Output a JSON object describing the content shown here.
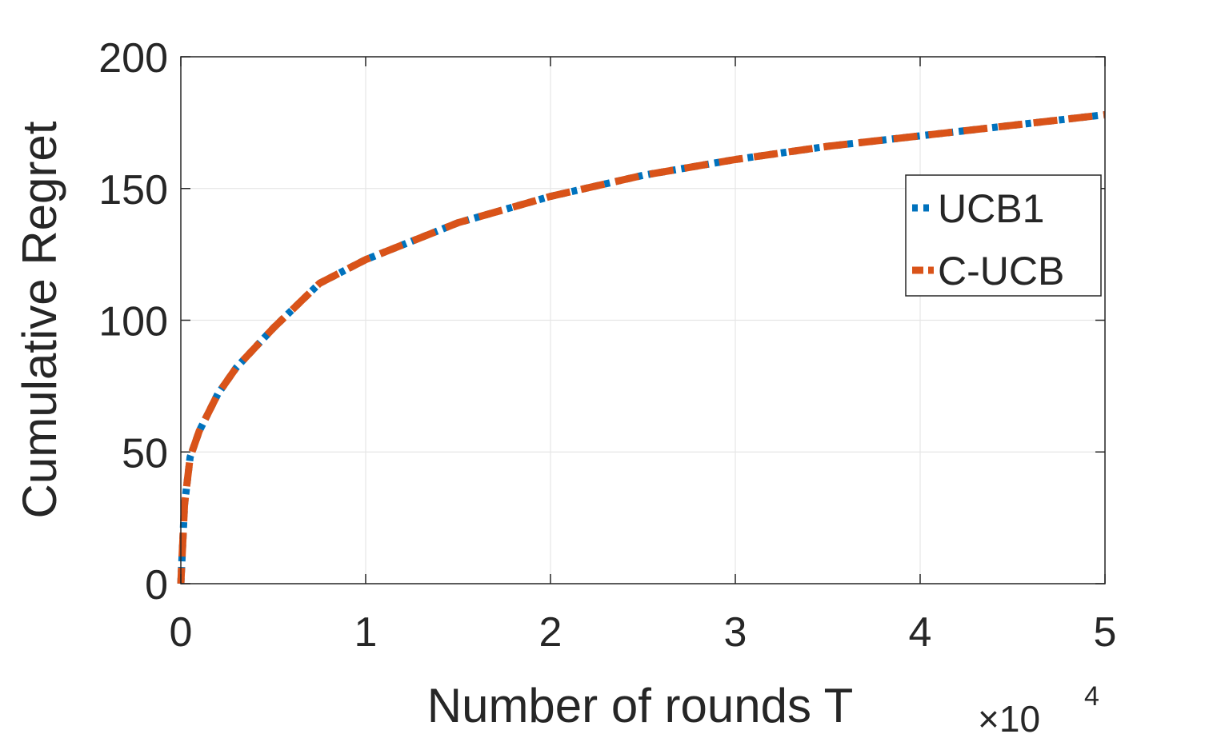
{
  "chart_data": {
    "type": "line",
    "xlabel": "Number of rounds T",
    "ylabel": "Cumulative Regret",
    "x_exponent_label": "×10",
    "x_exponent_power": "4",
    "xlim": [
      0,
      5
    ],
    "ylim": [
      0,
      200
    ],
    "x_ticks": [
      "0",
      "1",
      "2",
      "3",
      "4",
      "5"
    ],
    "y_ticks": [
      "0",
      "50",
      "100",
      "150",
      "200"
    ],
    "grid": true,
    "legend_position": "right",
    "series": [
      {
        "name": "UCB1",
        "color": "#0072BD",
        "line_style": "dotted",
        "x": [
          0,
          0.02,
          0.05,
          0.1,
          0.2,
          0.3,
          0.5,
          0.75,
          1,
          1.5,
          2,
          2.5,
          3,
          3.5,
          4,
          4.5,
          5
        ],
        "y": [
          0,
          30,
          48,
          58,
          72,
          82,
          97,
          114,
          123,
          137,
          147,
          155,
          161,
          166,
          170,
          174,
          178
        ]
      },
      {
        "name": "C-UCB",
        "color": "#D95319",
        "line_style": "dashed",
        "x": [
          0,
          0.02,
          0.05,
          0.1,
          0.2,
          0.3,
          0.5,
          0.75,
          1,
          1.5,
          2,
          2.5,
          3,
          3.5,
          4,
          4.5,
          5
        ],
        "y": [
          0,
          30,
          48,
          58,
          72,
          82,
          97,
          114,
          123,
          137,
          147,
          155,
          161,
          166,
          170,
          174,
          178
        ]
      }
    ]
  }
}
